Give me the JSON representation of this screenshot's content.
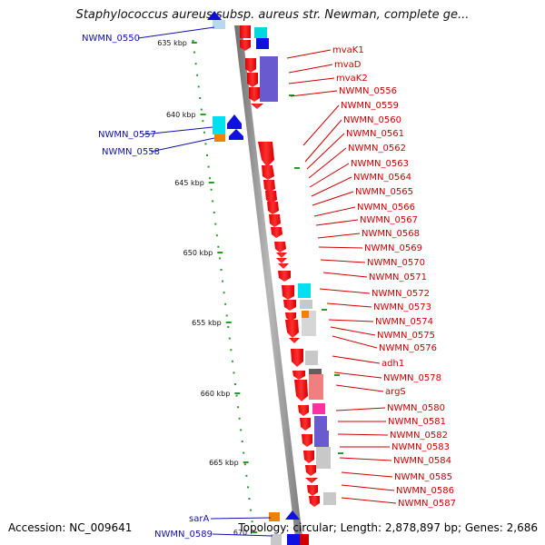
{
  "title": "Staphylococcus aureus subsp. aureus str. Newman, complete ge...",
  "footer": {
    "accession": "Accession: NC_009641",
    "topology": "Topology: circular; Length: 2,878,897 bp; Genes: 2,686"
  },
  "colors": {
    "right_label": "#cc0000",
    "left_label": "#1010b0",
    "backbone": "#8a8a8a",
    "scale_dots": "#2a9a2a"
  },
  "scale_ticks": [
    "635 kbp",
    "640 kbp",
    "645 kbp",
    "650 kbp",
    "655 kbp",
    "660 kbp",
    "665 kbp",
    "670"
  ],
  "right_labels": [
    "mvaK1",
    "mvaD",
    "mvaK2",
    "NWMN_0556",
    "NWMN_0559",
    "NWMN_0560",
    "NWMN_0561",
    "NWMN_0562",
    "NWMN_0563",
    "NWMN_0564",
    "NWMN_0565",
    "NWMN_0566",
    "NWMN_0567",
    "NWMN_0568",
    "NWMN_0569",
    "NWMN_0570",
    "NWMN_0571",
    "NWMN_0572",
    "NWMN_0573",
    "NWMN_0574",
    "NWMN_0575",
    "NWMN_0576",
    "adh1",
    "NWMN_0578",
    "argS",
    "NWMN_0580",
    "NWMN_0581",
    "NWMN_0582",
    "NWMN_0583",
    "NWMN_0584",
    "NWMN_0585",
    "NWMN_0586",
    "NWMN_0587"
  ],
  "left_labels": [
    "NWMN_0550",
    "NWMN_0557",
    "NWMN_0558",
    "sarA",
    "NWMN_0589"
  ]
}
